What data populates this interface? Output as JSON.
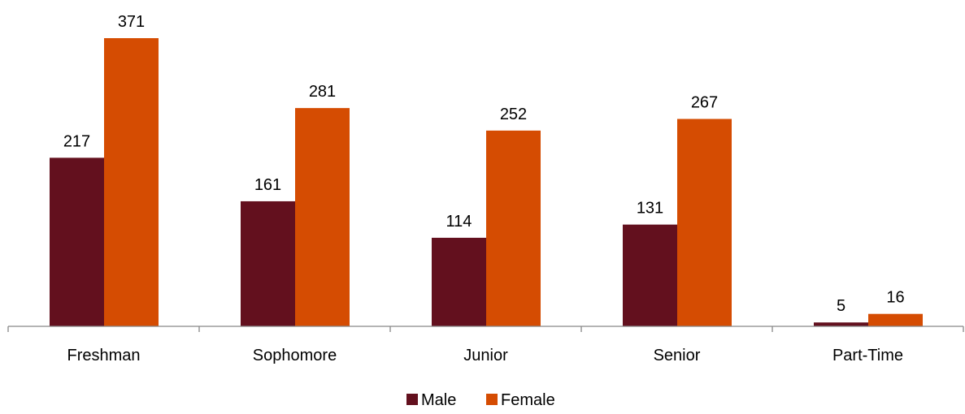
{
  "chart_data": {
    "type": "bar",
    "categories": [
      "Freshman",
      "Sophomore",
      "Junior",
      "Senior",
      "Part-Time"
    ],
    "series": [
      {
        "name": "Male",
        "values": [
          217,
          161,
          114,
          131,
          5
        ],
        "color": "#63101e"
      },
      {
        "name": "Female",
        "values": [
          371,
          281,
          252,
          267,
          16
        ],
        "color": "#d54c02"
      }
    ],
    "ylim": [
      0,
      371
    ],
    "grid": false,
    "data_labels": true,
    "legend_position": "bottom"
  }
}
